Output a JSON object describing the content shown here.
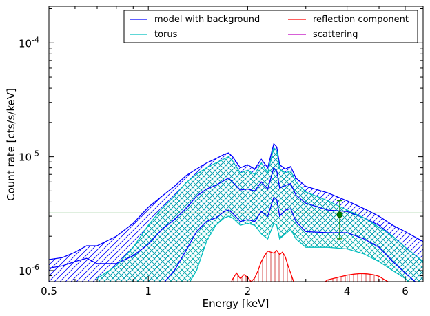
{
  "chart_data": {
    "type": "line",
    "xlabel": "Energy [keV]",
    "ylabel": "Count rate [cts/s/keV]",
    "x_scale": "log",
    "y_scale": "log",
    "xlim": [
      0.5,
      6.8
    ],
    "ylim": [
      8e-07,
      0.00021
    ],
    "x_ticks": [
      {
        "value": 0.5,
        "label": "0.5"
      },
      {
        "value": 1,
        "label": "1"
      },
      {
        "value": 2,
        "label": "2"
      },
      {
        "value": 4,
        "label": "4"
      },
      {
        "value": 6,
        "label": "6"
      }
    ],
    "y_ticks": [
      {
        "value": 1e-06,
        "base": "10",
        "exp": "-6"
      },
      {
        "value": 1e-05,
        "base": "10",
        "exp": "-5"
      },
      {
        "value": 0.0001,
        "base": "10",
        "exp": "-4"
      }
    ],
    "legend": {
      "placement": "top-right",
      "entries": [
        {
          "label": "model with background",
          "color": "#0000ff"
        },
        {
          "label": "reflection component",
          "color": "#ff0000"
        },
        {
          "label": "torus",
          "color": "#00bfbf"
        },
        {
          "label": "scattering",
          "color": "#bf00bf"
        }
      ]
    },
    "horizontal_line": {
      "y": 3.2e-06,
      "color": "#008000"
    },
    "data_point": {
      "x": 3.8,
      "y": 3.1e-06,
      "yerr_low": 1.9e-06,
      "yerr_high": 4.1e-06,
      "color": "#008000"
    },
    "series": [
      {
        "name": "model with background",
        "color": "#0000ff",
        "x": [
          0.5,
          0.55,
          0.6,
          0.65,
          0.7,
          0.8,
          0.9,
          1.0,
          1.1,
          1.2,
          1.3,
          1.4,
          1.5,
          1.6,
          1.7,
          1.75,
          1.8,
          1.9,
          2.0,
          2.1,
          2.2,
          2.3,
          2.4,
          2.45,
          2.5,
          2.6,
          2.7,
          2.8,
          3.0,
          3.5,
          4.0,
          4.5,
          5.0,
          5.5,
          6.0,
          6.8
        ],
        "upper": [
          1.25e-06,
          1.3e-06,
          1.45e-06,
          1.65e-06,
          1.65e-06,
          2e-06,
          2.6e-06,
          3.6e-06,
          4.5e-06,
          5.5e-06,
          6.8e-06,
          7.8e-06,
          8.8e-06,
          9.6e-06,
          1.05e-05,
          1.08e-05,
          1e-05,
          8e-06,
          8.5e-06,
          7.8e-06,
          9.5e-06,
          8e-06,
          1.3e-05,
          1.22e-05,
          8.5e-06,
          7.8e-06,
          8.2e-06,
          6.5e-06,
          5.5e-06,
          4.8e-06,
          4.1e-06,
          3.5e-06,
          3e-06,
          2.5e-06,
          2.2e-06,
          1.8e-06
        ],
        "mid": [
          1.05e-06,
          1.1e-06,
          1.2e-06,
          1.28e-06,
          1.15e-06,
          1.15e-06,
          1.35e-06,
          1.7e-06,
          2.3e-06,
          2.8e-06,
          3.5e-06,
          4.5e-06,
          5.2e-06,
          5.6e-06,
          6.2e-06,
          6.5e-06,
          6e-06,
          5.1e-06,
          5.2e-06,
          5e-06,
          6e-06,
          5.2e-06,
          8e-06,
          7.5e-06,
          5.3e-06,
          5.6e-06,
          5.8e-06,
          4.6e-06,
          3.9e-06,
          3.4e-06,
          3.3e-06,
          2.9e-06,
          2.5e-06,
          2e-06,
          1.6e-06,
          1.2e-06
        ],
        "lower": [
          7e-07,
          7e-07,
          7e-07,
          7e-07,
          7e-07,
          7e-07,
          7e-07,
          7e-07,
          7.5e-07,
          1e-06,
          1.5e-06,
          2.2e-06,
          2.7e-06,
          2.9e-06,
          3.3e-06,
          3.4e-06,
          3.2e-06,
          2.7e-06,
          2.8e-06,
          2.7e-06,
          3.3e-06,
          3e-06,
          4.4e-06,
          4.2e-06,
          3e-06,
          3.4e-06,
          3.5e-06,
          2.7e-06,
          2.2e-06,
          2.15e-06,
          2.15e-06,
          1.9e-06,
          1.6e-06,
          1.2e-06,
          9.5e-07,
          7e-07
        ]
      },
      {
        "name": "torus",
        "color": "#00bfbf",
        "x": [
          0.7,
          0.8,
          0.9,
          1.0,
          1.1,
          1.2,
          1.3,
          1.4,
          1.5,
          1.6,
          1.7,
          1.75,
          1.8,
          1.9,
          2.0,
          2.1,
          2.2,
          2.3,
          2.4,
          2.45,
          2.5,
          2.6,
          2.7,
          2.8,
          3.0,
          3.5,
          4.0,
          4.5,
          5.0,
          5.5,
          6.0,
          6.8
        ],
        "upper": [
          8.5e-07,
          1.1e-06,
          1.6e-06,
          2.5e-06,
          3.5e-06,
          4.5e-06,
          5.9e-06,
          7e-06,
          8e-06,
          8.8e-06,
          9.6e-06,
          1e-05,
          9.2e-06,
          7.2e-06,
          7.6e-06,
          7e-06,
          8.8e-06,
          7.2e-06,
          1.2e-05,
          1.12e-05,
          7.8e-06,
          7.2e-06,
          7.5e-06,
          6e-06,
          4.9e-06,
          4.1e-06,
          3.4e-06,
          2.9e-06,
          2.4e-06,
          2e-06,
          1.6e-06,
          1.2e-06
        ],
        "lower": [
          6e-07,
          6e-07,
          6e-07,
          6e-07,
          6e-07,
          6e-07,
          7e-07,
          1e-06,
          1.8e-06,
          2.5e-06,
          2.9e-06,
          3e-06,
          2.9e-06,
          2.5e-06,
          2.6e-06,
          2.5e-06,
          2.1e-06,
          1.9e-06,
          2.6e-06,
          2.5e-06,
          1.9e-06,
          2.1e-06,
          2.3e-06,
          1.9e-06,
          1.6e-06,
          1.6e-06,
          1.55e-06,
          1.4e-06,
          1.2e-06,
          1e-06,
          8.5e-07,
          6e-07
        ]
      },
      {
        "name": "reflection component",
        "color": "#ff0000",
        "x": [
          1.75,
          1.8,
          1.85,
          1.9,
          1.95,
          2.0,
          2.05,
          2.1,
          2.15,
          2.2,
          2.25,
          2.3,
          2.35,
          2.4,
          2.45,
          2.5,
          2.55,
          2.6,
          2.65,
          2.7,
          2.8
        ],
        "upper": [
          7e-07,
          8.4e-07,
          9.5e-07,
          8.5e-07,
          9.2e-07,
          8.7e-07,
          8e-07,
          8.6e-07,
          1e-06,
          1.2e-06,
          1.35e-06,
          1.48e-06,
          1.45e-06,
          1.42e-06,
          1.5e-06,
          1.38e-06,
          1.45e-06,
          1.32e-06,
          1.1e-06,
          9.5e-07,
          7e-07
        ],
        "lower": [
          7e-07,
          7e-07,
          7e-07,
          7e-07,
          7e-07,
          7e-07,
          7e-07,
          7e-07,
          7e-07,
          7e-07,
          7e-07,
          7e-07,
          7e-07,
          7e-07,
          7e-07,
          7e-07,
          7e-07,
          7e-07,
          7e-07,
          7e-07,
          7e-07
        ]
      },
      {
        "name": "reflection component",
        "color": "#ff0000",
        "x": [
          3.2,
          3.5,
          3.8,
          4.0,
          4.2,
          4.4,
          4.6,
          4.8,
          5.0,
          5.2,
          5.5,
          5.8
        ],
        "upper": [
          7e-07,
          8.3e-07,
          8.8e-07,
          9.1e-07,
          9.3e-07,
          9.4e-07,
          9.35e-07,
          9.2e-07,
          8.9e-07,
          8.3e-07,
          7.6e-07,
          7e-07
        ],
        "lower": [
          7e-07,
          7e-07,
          7e-07,
          7e-07,
          7e-07,
          7e-07,
          7e-07,
          7e-07,
          7e-07,
          7e-07,
          7e-07,
          7e-07
        ]
      }
    ]
  }
}
